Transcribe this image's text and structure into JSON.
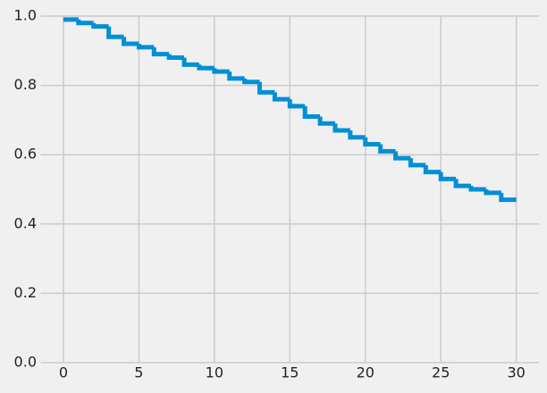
{
  "chart_data": {
    "type": "step",
    "x": [
      0,
      1,
      2,
      3,
      4,
      5,
      6,
      7,
      8,
      9,
      10,
      11,
      12,
      13,
      14,
      15,
      16,
      17,
      18,
      19,
      20,
      21,
      22,
      23,
      24,
      25,
      26,
      27,
      28,
      29,
      30
    ],
    "series": [
      {
        "color": "#008fd5",
        "values": [
          0.99,
          0.99,
          0.98,
          0.97,
          0.94,
          0.92,
          0.91,
          0.89,
          0.88,
          0.86,
          0.85,
          0.84,
          0.82,
          0.81,
          0.78,
          0.76,
          0.74,
          0.71,
          0.69,
          0.67,
          0.65,
          0.63,
          0.61,
          0.59,
          0.57,
          0.55,
          0.53,
          0.51,
          0.5,
          0.49,
          0.47
        ]
      }
    ],
    "xlim": [
      -1.5,
      31.5
    ],
    "ylim": [
      0,
      1
    ],
    "xticks": [
      0,
      5,
      10,
      15,
      20,
      25,
      30
    ],
    "yticks": [
      {
        "value": 0,
        "label": "0.0"
      },
      {
        "value": 0.2,
        "label": "0.2"
      },
      {
        "value": 0.4,
        "label": "0.4"
      },
      {
        "value": 0.6,
        "label": "0.6"
      },
      {
        "value": 0.8,
        "label": "0.8"
      },
      {
        "value": 1,
        "label": "1.0"
      }
    ],
    "grid": true
  }
}
